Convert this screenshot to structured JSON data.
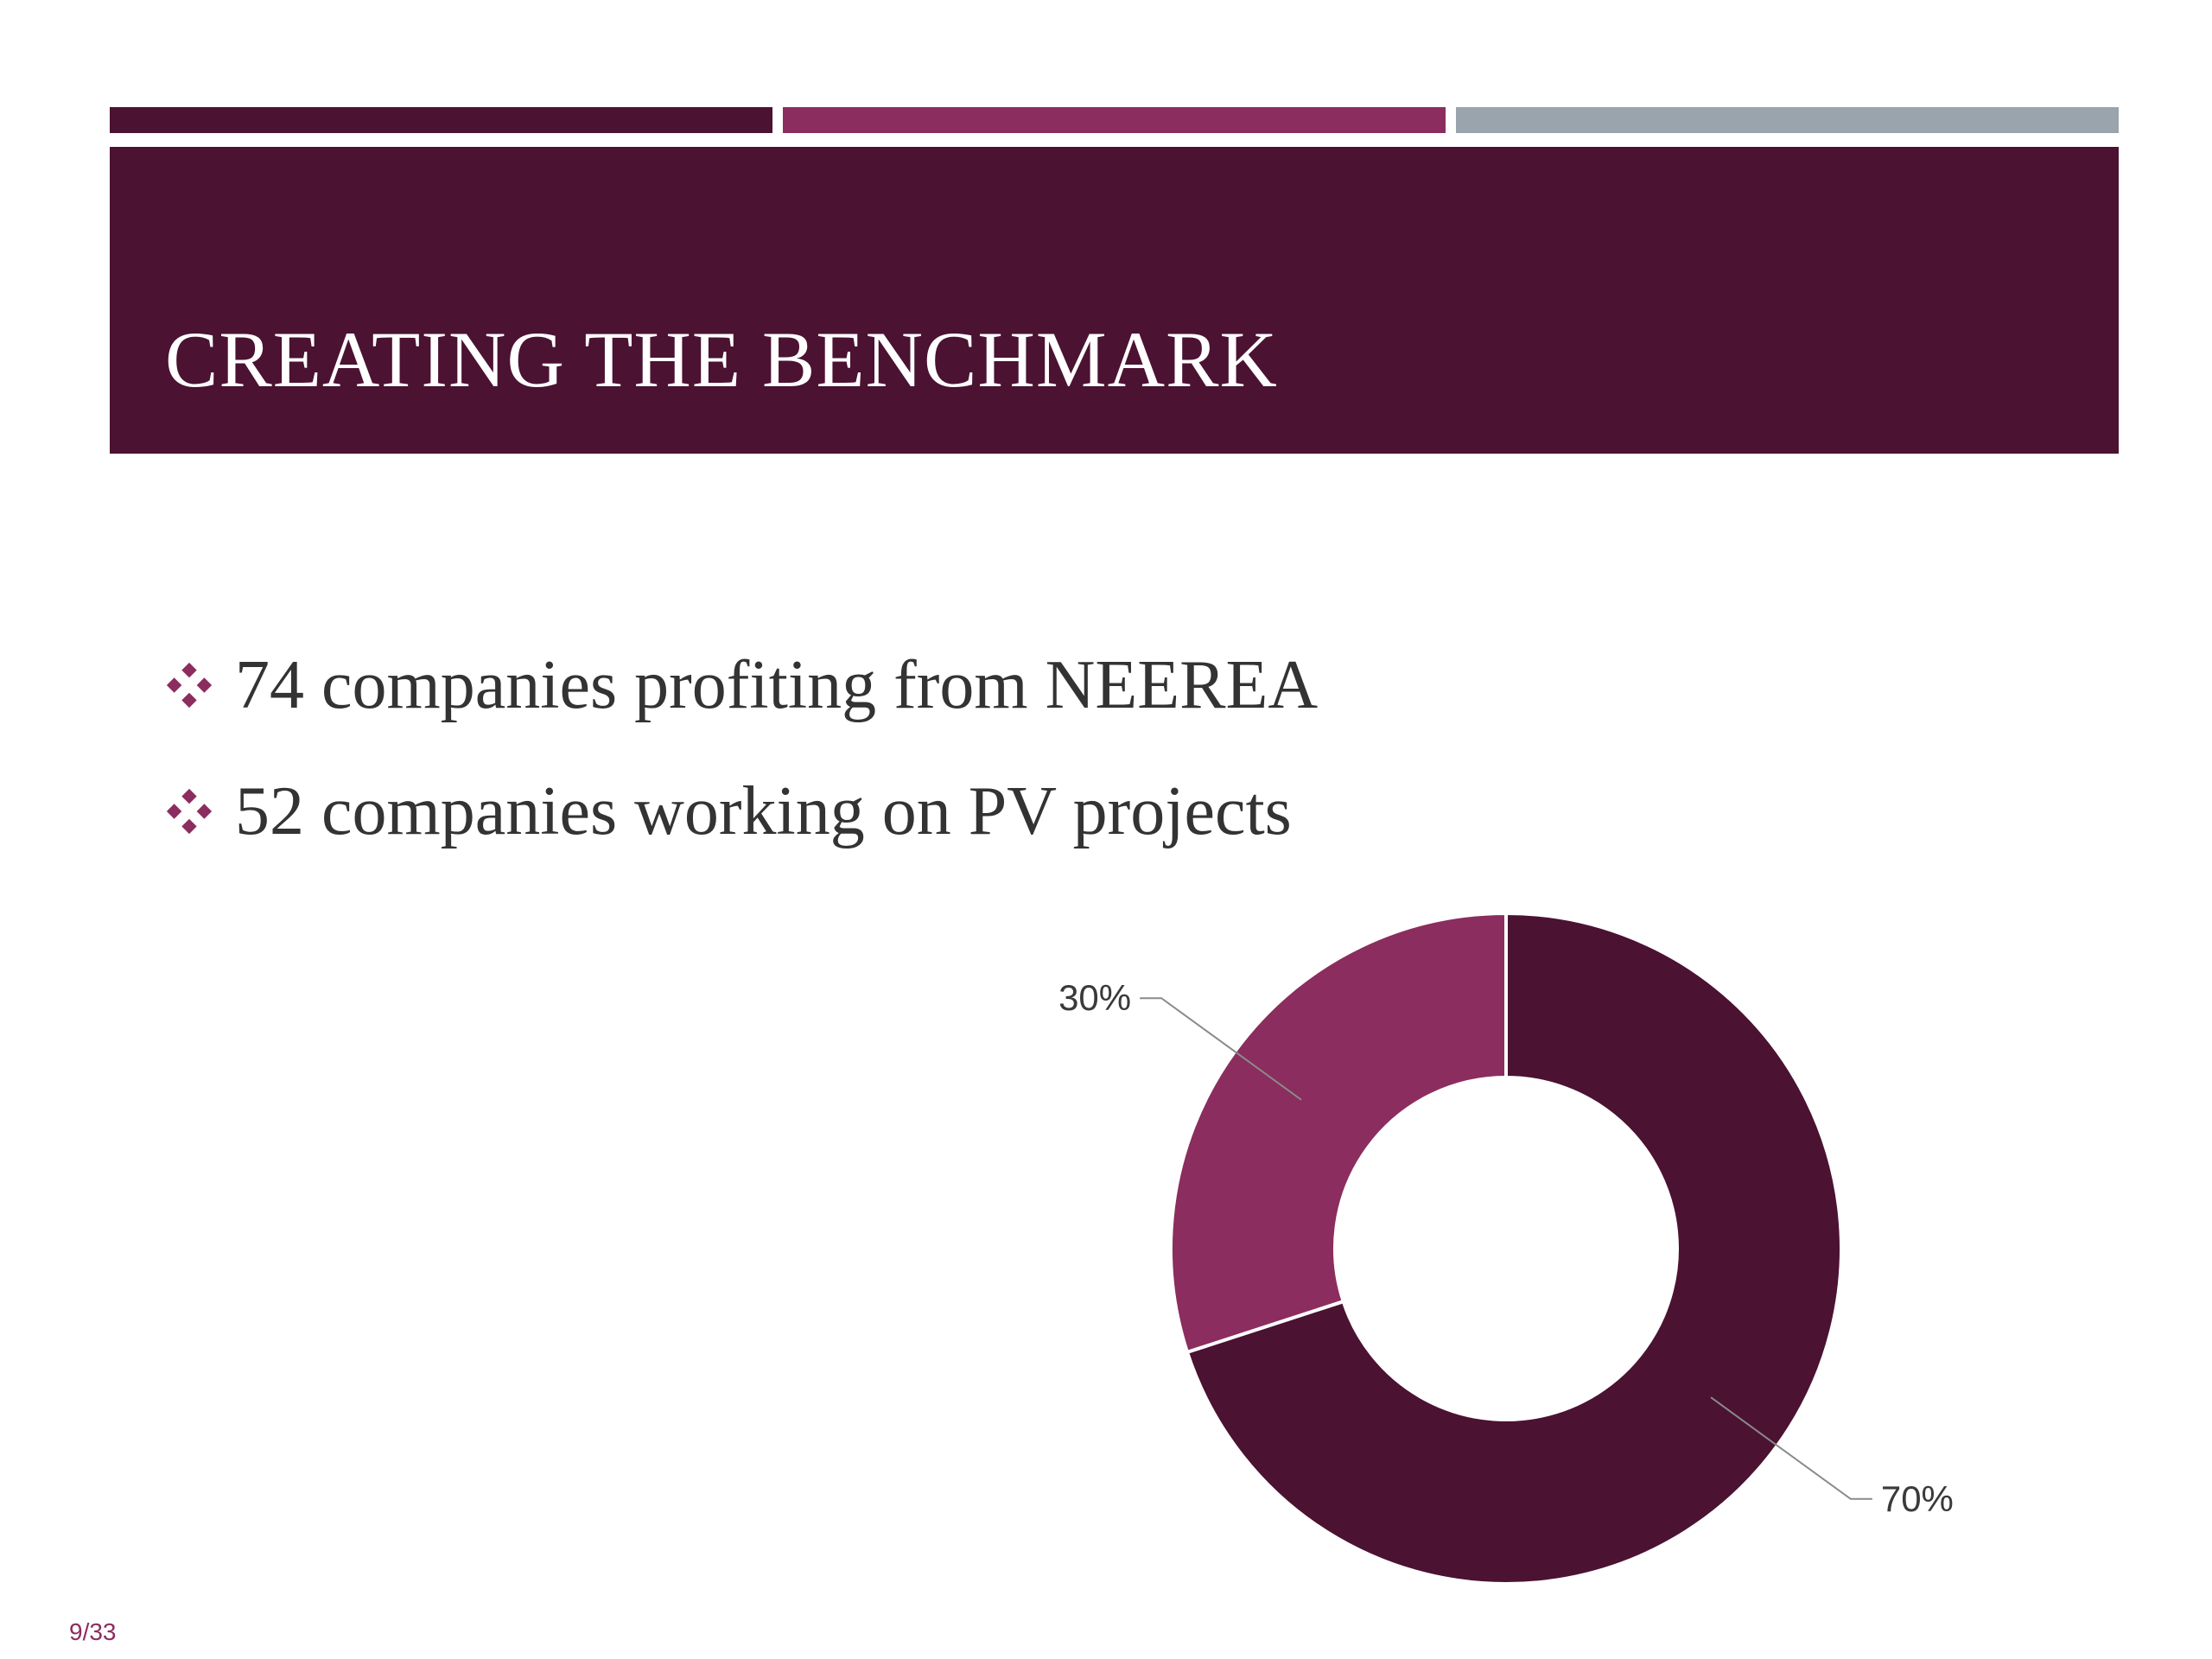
{
  "theme": {
    "primary": "#4b1232",
    "secondary": "#8b2d5e",
    "gray": "#9aa4ac",
    "text": "#333333"
  },
  "slide": {
    "title": "CREATING THE BENCHMARK",
    "bullets": [
      {
        "icon": "diamond-bullet-icon",
        "text": "74 companies profiting from NEEREA"
      },
      {
        "icon": "diamond-bullet-icon",
        "text": "52 companies working on PV projects"
      }
    ],
    "page_number": "9/33"
  },
  "chart_data": {
    "type": "pie",
    "variant": "donut",
    "slices": [
      {
        "value": 70,
        "label": "70%",
        "color": "#4b1232"
      },
      {
        "value": 30,
        "label": "30%",
        "color": "#8b2d5e"
      }
    ]
  }
}
